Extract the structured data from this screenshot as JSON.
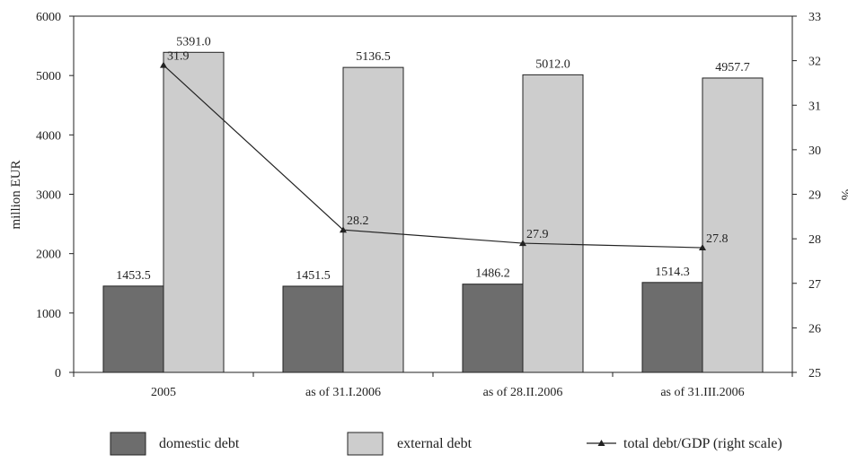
{
  "chart_data": {
    "type": "bar",
    "categories": [
      "2005",
      "as of  31.I.2006",
      "as of  28.II.2006",
      "as of  31.III.2006"
    ],
    "series": [
      {
        "name": "domestic debt",
        "type": "bar",
        "axis": "left",
        "values": [
          1453.5,
          1451.5,
          1486.2,
          1514.3
        ],
        "labels": [
          "1453.5",
          "1451.5",
          "1486.2",
          "1514.3"
        ],
        "color": "#6d6d6d"
      },
      {
        "name": "external debt",
        "type": "bar",
        "axis": "left",
        "values": [
          5391.0,
          5136.5,
          5012.0,
          4957.7
        ],
        "labels": [
          "5391.0",
          "5136.5",
          "5012.0",
          "4957.7"
        ],
        "color": "#cdcdcd"
      },
      {
        "name": "total debt/GDP (right scale)",
        "type": "line",
        "axis": "right",
        "values": [
          31.9,
          28.2,
          27.9,
          27.8
        ],
        "labels": [
          "31.9",
          "28.2",
          "27.9",
          "27.8"
        ],
        "color": "#222222"
      }
    ],
    "ylabel": "million EUR",
    "y2label": "%",
    "ylim": [
      0,
      6000
    ],
    "y2lim": [
      25,
      33
    ],
    "yticks": [
      "0",
      "1000",
      "2000",
      "3000",
      "4000",
      "5000",
      "6000"
    ],
    "y2ticks": [
      "25",
      "26",
      "27",
      "28",
      "29",
      "30",
      "31",
      "32",
      "33"
    ],
    "grid": false,
    "legend_position": "bottom"
  }
}
